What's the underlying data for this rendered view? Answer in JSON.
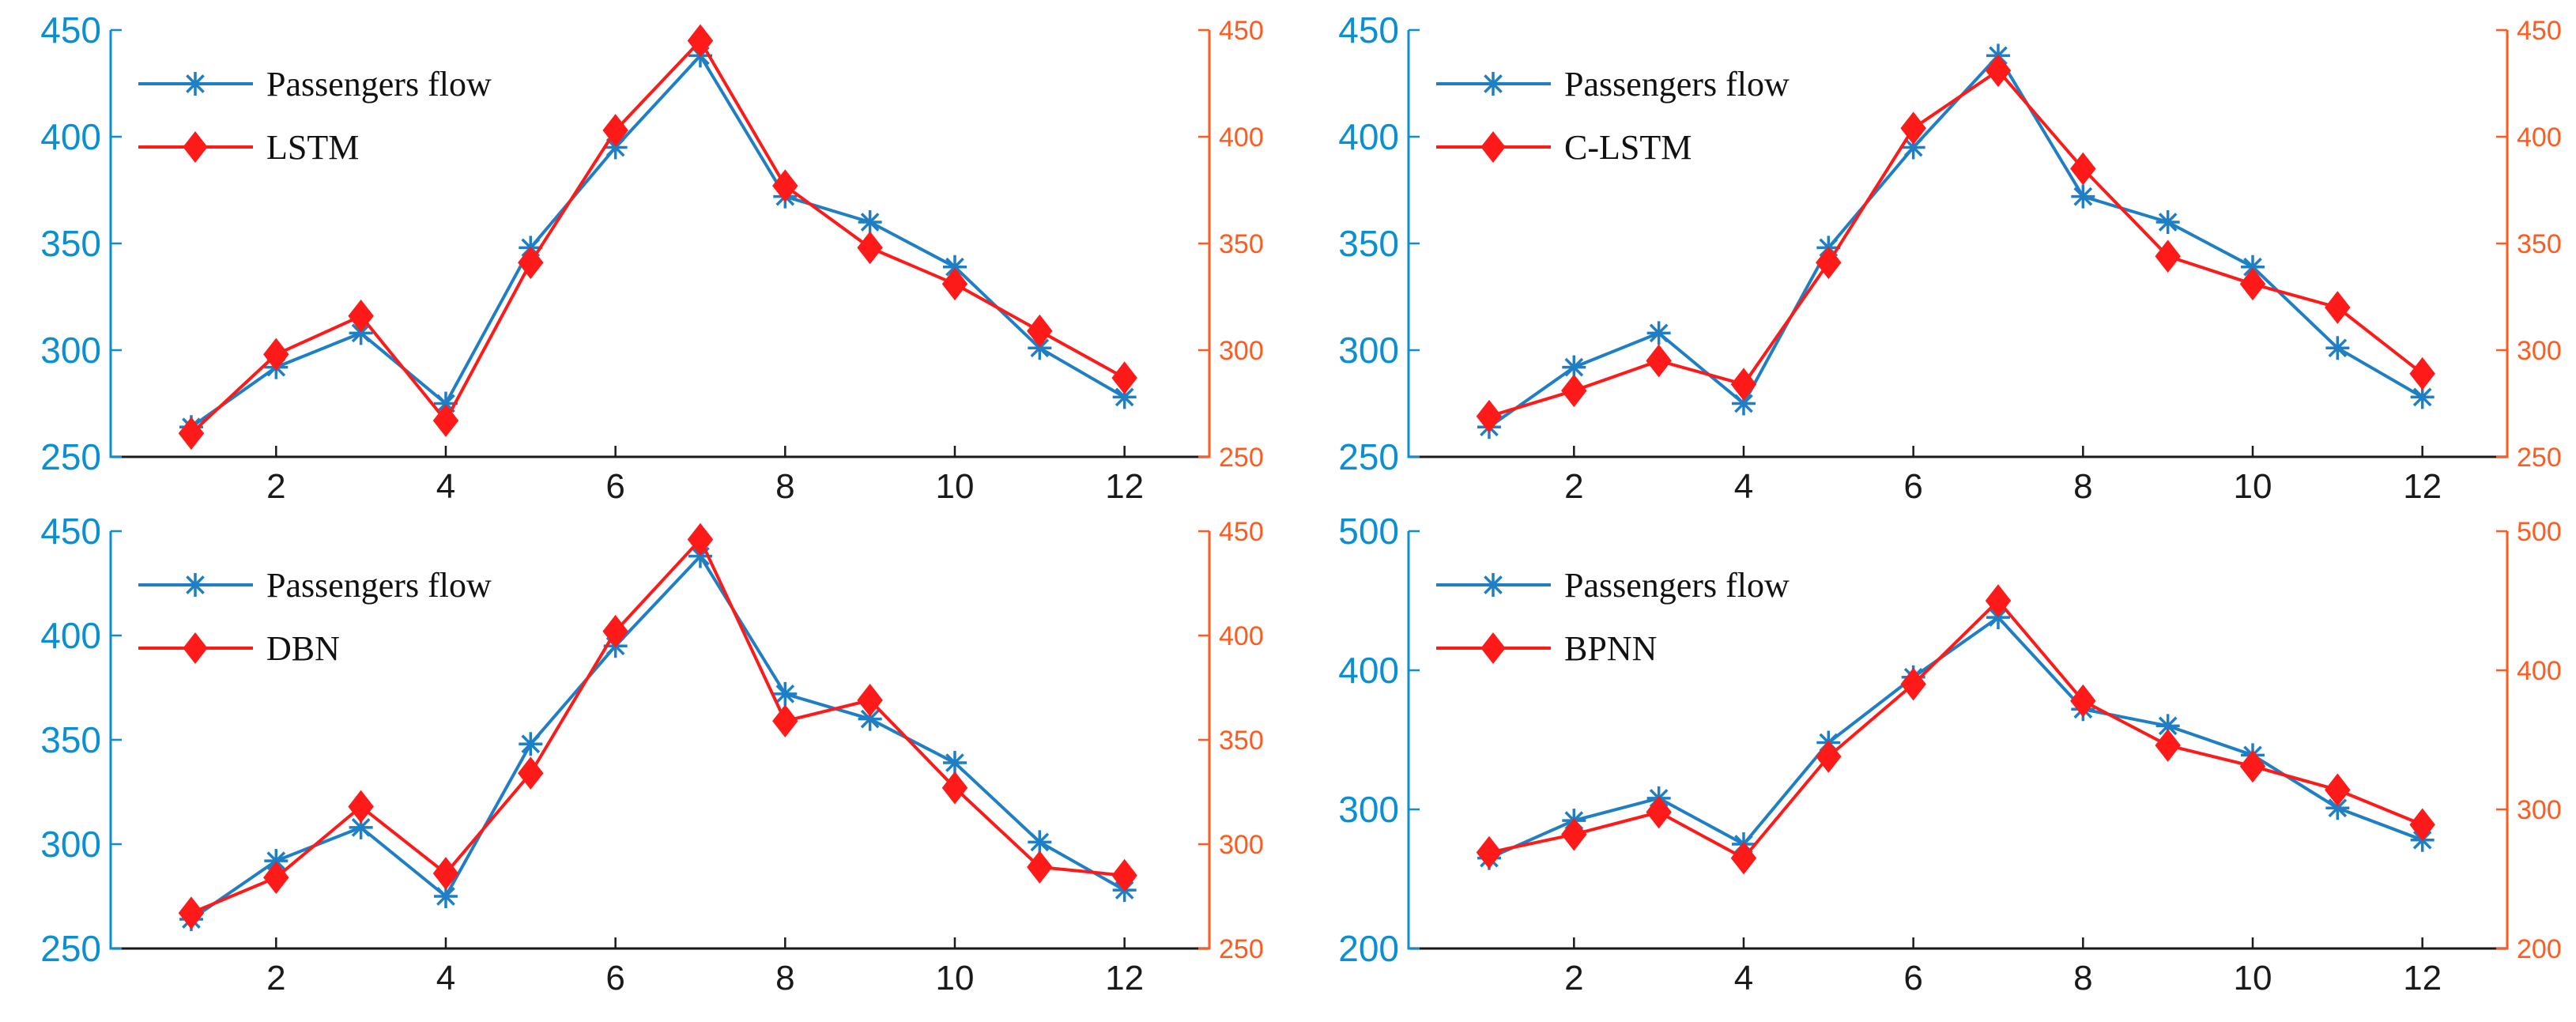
{
  "colors": {
    "actual": "#1f7fc4",
    "predicted": "#ff1a1a",
    "left_axis": "#0a8fd0",
    "right_axis": "#ff5a1f",
    "x_axis": "#1a1a1a"
  },
  "chart_data": [
    {
      "type": "line",
      "panel": "top-left",
      "x": [
        1,
        2,
        3,
        4,
        5,
        6,
        7,
        8,
        9,
        10,
        11,
        12
      ],
      "xticks": [
        2,
        4,
        6,
        8,
        10,
        12
      ],
      "xlim": [
        0.05,
        13
      ],
      "ylim": [
        250,
        450
      ],
      "yticks": [
        250,
        300,
        350,
        400,
        450
      ],
      "y2lim": [
        250,
        450
      ],
      "y2ticks": [
        250,
        300,
        350,
        400,
        450
      ],
      "legend_position": "top-left",
      "series": [
        {
          "name": "Passengers flow",
          "marker": "star",
          "values": [
            264,
            292,
            308,
            275,
            348,
            395,
            438,
            372,
            360,
            339,
            301,
            278
          ]
        },
        {
          "name": "LSTM",
          "marker": "diamond",
          "values": [
            261,
            298,
            316,
            267,
            341,
            403,
            445,
            377,
            348,
            331,
            309,
            287
          ]
        }
      ]
    },
    {
      "type": "line",
      "panel": "top-right",
      "x": [
        1,
        2,
        3,
        4,
        5,
        6,
        7,
        8,
        9,
        10,
        11,
        12
      ],
      "xticks": [
        2,
        4,
        6,
        8,
        10,
        12
      ],
      "xlim": [
        0.05,
        13
      ],
      "ylim": [
        250,
        450
      ],
      "yticks": [
        250,
        300,
        350,
        400,
        450
      ],
      "y2lim": [
        250,
        450
      ],
      "y2ticks": [
        250,
        300,
        350,
        400,
        450
      ],
      "legend_position": "top-left",
      "series": [
        {
          "name": "Passengers flow",
          "marker": "star",
          "values": [
            264,
            292,
            308,
            275,
            348,
            395,
            438,
            372,
            360,
            339,
            301,
            278
          ]
        },
        {
          "name": "C-LSTM",
          "marker": "diamond",
          "values": [
            269,
            281,
            295,
            284,
            341,
            404,
            431,
            385,
            344,
            331,
            320,
            289
          ]
        }
      ]
    },
    {
      "type": "line",
      "panel": "bottom-left",
      "x": [
        1,
        2,
        3,
        4,
        5,
        6,
        7,
        8,
        9,
        10,
        11,
        12
      ],
      "xticks": [
        2,
        4,
        6,
        8,
        10,
        12
      ],
      "xlim": [
        0.05,
        13
      ],
      "ylim": [
        250,
        450
      ],
      "yticks": [
        250,
        300,
        350,
        400,
        450
      ],
      "y2lim": [
        250,
        450
      ],
      "y2ticks": [
        250,
        300,
        350,
        400,
        450
      ],
      "legend_position": "top-left",
      "series": [
        {
          "name": "Passengers flow",
          "marker": "star",
          "values": [
            264,
            292,
            308,
            275,
            348,
            395,
            438,
            372,
            360,
            339,
            301,
            278
          ]
        },
        {
          "name": "DBN",
          "marker": "diamond",
          "values": [
            267,
            284,
            318,
            286,
            334,
            402,
            446,
            359,
            369,
            327,
            289,
            285
          ]
        }
      ]
    },
    {
      "type": "line",
      "panel": "bottom-right",
      "x": [
        1,
        2,
        3,
        4,
        5,
        6,
        7,
        8,
        9,
        10,
        11,
        12
      ],
      "xticks": [
        2,
        4,
        6,
        8,
        10,
        12
      ],
      "xlim": [
        0.05,
        13
      ],
      "ylim": [
        200,
        500
      ],
      "yticks": [
        200,
        300,
        400,
        500
      ],
      "y2lim": [
        200,
        500
      ],
      "y2ticks": [
        200,
        300,
        400,
        500
      ],
      "legend_position": "top-left",
      "series": [
        {
          "name": "Passengers flow",
          "marker": "star",
          "values": [
            265,
            292,
            308,
            275,
            348,
            395,
            438,
            372,
            360,
            339,
            301,
            278
          ]
        },
        {
          "name": "BPNN",
          "marker": "diamond",
          "values": [
            269,
            282,
            298,
            265,
            338,
            390,
            450,
            378,
            346,
            331,
            314,
            289
          ]
        }
      ]
    }
  ]
}
